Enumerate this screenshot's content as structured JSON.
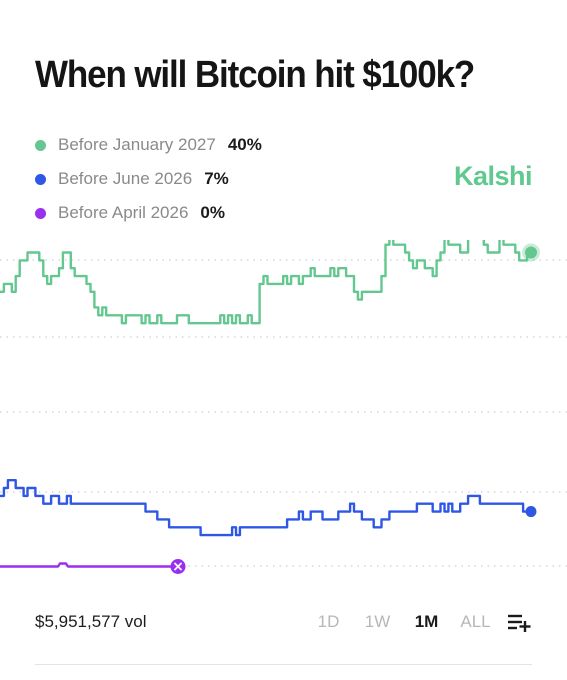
{
  "header": {
    "title": "When will Bitcoin hit $100k?"
  },
  "brand": {
    "name": "Kalshi",
    "color": "#5fc98f"
  },
  "legend": [
    {
      "label": "Before January 2027",
      "value": "40%",
      "color": "#63c78f"
    },
    {
      "label": "Before June 2026",
      "value": "7%",
      "color": "#2f57e6"
    },
    {
      "label": "Before April 2026",
      "value": "0%",
      "color": "#9b2ff0"
    }
  ],
  "footer": {
    "volume": "$5,951,577 vol",
    "ranges": [
      "1D",
      "1W",
      "1M",
      "ALL"
    ],
    "active_range": "1M",
    "add_icon": "playlist-add-icon"
  },
  "chart_data": {
    "type": "line",
    "title": "When will Bitcoin hit $100k?",
    "xlabel": "",
    "ylabel": "",
    "range": "1M",
    "grid": true,
    "legend_position": "top-left",
    "series": [
      {
        "name": "Before January 2027",
        "color": "#63c78f",
        "current": 40,
        "end_marker": "dot",
        "values": [
          35,
          36,
          36,
          35,
          37,
          39,
          39,
          40,
          40,
          40,
          39,
          37,
          36,
          37,
          37,
          38,
          40,
          40,
          38,
          37,
          37,
          37,
          36,
          35,
          33,
          32,
          33,
          32,
          32,
          32,
          32,
          31,
          32,
          32,
          32,
          32,
          31,
          32,
          31,
          31,
          32,
          31,
          31,
          31,
          31,
          32,
          32,
          32,
          31,
          31,
          31,
          31,
          31,
          31,
          31,
          31,
          32,
          31,
          32,
          31,
          32,
          31,
          31,
          32,
          31,
          31,
          36,
          37,
          36,
          36,
          36,
          36,
          37,
          36,
          37,
          37,
          36,
          37,
          37,
          38,
          37,
          37,
          37,
          37,
          38,
          37,
          38,
          38,
          37,
          37,
          35,
          34,
          35,
          35,
          35,
          35,
          35,
          37,
          41,
          42,
          41,
          41,
          41,
          40,
          39,
          38,
          39,
          39,
          38,
          38,
          37,
          39,
          40,
          42,
          41,
          41,
          41,
          40,
          40,
          44,
          45,
          44,
          43,
          41,
          40,
          40,
          40,
          42,
          41,
          41,
          41,
          40,
          39,
          39,
          40,
          40
        ]
      },
      {
        "name": "Before June 2026",
        "color": "#2f57e6",
        "current": 7,
        "end_marker": "dot",
        "values": [
          9,
          10,
          11,
          11,
          10,
          10,
          9,
          10,
          10,
          9,
          9,
          8,
          8,
          9,
          9,
          8,
          8,
          9,
          8,
          8,
          8,
          8,
          8,
          8,
          8,
          8,
          8,
          8,
          8,
          8,
          8,
          8,
          8,
          8,
          8,
          8,
          8,
          7,
          7,
          7,
          6,
          6,
          6,
          5,
          5,
          5,
          5,
          5,
          5,
          5,
          5,
          4,
          4,
          4,
          4,
          4,
          4,
          4,
          4,
          5,
          4,
          5,
          5,
          5,
          5,
          5,
          5,
          5,
          5,
          5,
          5,
          5,
          5,
          6,
          6,
          6,
          7,
          6,
          6,
          7,
          7,
          7,
          6,
          6,
          6,
          6,
          7,
          7,
          7,
          8,
          7,
          7,
          6,
          6,
          6,
          5,
          5,
          6,
          6,
          7,
          7,
          7,
          7,
          7,
          7,
          7,
          8,
          8,
          8,
          8,
          7,
          7,
          8,
          7,
          8,
          7,
          7,
          8,
          8,
          9,
          9,
          9,
          8,
          8,
          8,
          8,
          8,
          8,
          8,
          8,
          8,
          8,
          8,
          7,
          7,
          7
        ]
      },
      {
        "name": "Before April 2026",
        "color": "#9b2ff0",
        "current": 0,
        "end_marker": "x",
        "values": [
          0,
          0,
          0,
          0,
          0,
          0,
          0,
          0,
          0,
          0,
          0,
          0,
          0,
          0,
          0,
          0,
          0,
          0,
          0,
          0,
          0,
          0,
          0,
          0,
          0,
          0,
          0,
          0,
          0,
          0,
          0,
          0,
          0,
          0,
          0,
          0,
          0,
          0,
          0,
          0,
          0,
          0,
          0,
          0,
          0,
          0,
          0,
          0,
          0,
          0,
          0,
          0,
          0,
          0,
          0,
          0,
          0,
          0,
          0,
          0,
          0,
          0,
          0,
          0,
          0,
          0,
          0,
          0,
          0,
          0,
          0,
          0,
          0,
          0,
          0,
          0,
          0,
          0,
          0,
          0,
          0,
          0,
          0,
          0,
          0,
          0,
          0,
          0,
          0,
          0,
          0,
          0,
          0,
          0,
          0,
          0,
          0,
          0,
          0,
          0,
          0,
          0,
          0,
          0,
          0,
          0,
          0,
          0,
          0,
          0,
          0,
          0,
          0,
          0,
          0,
          0,
          0,
          0,
          0,
          0,
          0,
          0,
          0,
          0,
          0,
          0,
          0,
          0,
          0,
          0,
          0,
          0,
          0,
          0,
          0,
          0
        ]
      }
    ]
  }
}
